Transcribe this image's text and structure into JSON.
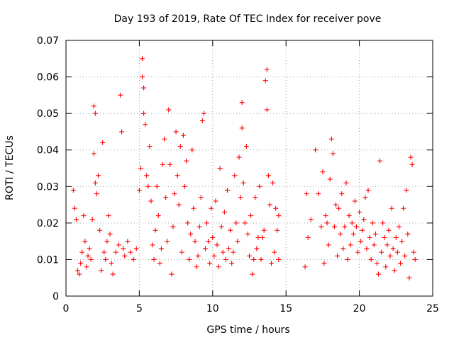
{
  "chart_data": {
    "type": "scatter",
    "title": "Day 193 of 2019, Rate Of TEC Index for receiver pove",
    "xlabel": "GPS time / hours",
    "ylabel": "ROTI / TECUs",
    "xlim": [
      0,
      25
    ],
    "ylim": [
      0,
      0.07
    ],
    "xticks": [
      0,
      5,
      10,
      15,
      20,
      25
    ],
    "xtick_labels": [
      "0",
      "5",
      "10",
      "15",
      "20",
      "25"
    ],
    "yticks": [
      0,
      0.01,
      0.02,
      0.03,
      0.04,
      0.05,
      0.06,
      0.07
    ],
    "ytick_labels": [
      "0",
      "0.01",
      "0.02",
      "0.03",
      "0.04",
      "0.05",
      "0.06",
      "0.07"
    ],
    "grid": true,
    "marker": "+",
    "color": "#ff0000",
    "series": [
      {
        "points": [
          [
            0.5,
            0.029
          ],
          [
            0.6,
            0.024
          ],
          [
            0.7,
            0.021
          ],
          [
            0.8,
            0.007
          ],
          [
            0.9,
            0.006
          ],
          [
            1.0,
            0.009
          ],
          [
            1.1,
            0.012
          ],
          [
            1.2,
            0.022
          ],
          [
            1.3,
            0.015
          ],
          [
            1.4,
            0.008
          ],
          [
            1.5,
            0.011
          ],
          [
            1.6,
            0.013
          ],
          [
            1.7,
            0.01
          ],
          [
            1.8,
            0.021
          ],
          [
            1.9,
            0.039
          ],
          [
            1.9,
            0.052
          ],
          [
            2.0,
            0.05
          ],
          [
            2.0,
            0.031
          ],
          [
            2.1,
            0.028
          ],
          [
            2.2,
            0.033
          ],
          [
            2.3,
            0.018
          ],
          [
            2.4,
            0.007
          ],
          [
            2.5,
            0.042
          ],
          [
            2.6,
            0.012
          ],
          [
            2.7,
            0.01
          ],
          [
            2.8,
            0.015
          ],
          [
            2.9,
            0.022
          ],
          [
            3.0,
            0.017
          ],
          [
            3.1,
            0.009
          ],
          [
            3.2,
            0.006
          ],
          [
            3.4,
            0.012
          ],
          [
            3.6,
            0.014
          ],
          [
            3.7,
            0.055
          ],
          [
            3.8,
            0.045
          ],
          [
            3.9,
            0.013
          ],
          [
            4.0,
            0.011
          ],
          [
            4.2,
            0.015
          ],
          [
            4.4,
            0.012
          ],
          [
            4.6,
            0.01
          ],
          [
            4.8,
            0.013
          ],
          [
            5.0,
            0.029
          ],
          [
            5.1,
            0.035
          ],
          [
            5.2,
            0.065
          ],
          [
            5.2,
            0.06
          ],
          [
            5.3,
            0.057
          ],
          [
            5.3,
            0.05
          ],
          [
            5.4,
            0.047
          ],
          [
            5.5,
            0.033
          ],
          [
            5.6,
            0.03
          ],
          [
            5.7,
            0.041
          ],
          [
            5.8,
            0.026
          ],
          [
            5.9,
            0.014
          ],
          [
            6.0,
            0.01
          ],
          [
            6.1,
            0.018
          ],
          [
            6.2,
            0.03
          ],
          [
            6.3,
            0.022
          ],
          [
            6.4,
            0.009
          ],
          [
            6.5,
            0.013
          ],
          [
            6.6,
            0.036
          ],
          [
            6.7,
            0.043
          ],
          [
            6.8,
            0.027
          ],
          [
            6.9,
            0.015
          ],
          [
            7.0,
            0.051
          ],
          [
            7.1,
            0.036
          ],
          [
            7.2,
            0.006
          ],
          [
            7.3,
            0.019
          ],
          [
            7.4,
            0.028
          ],
          [
            7.5,
            0.045
          ],
          [
            7.6,
            0.033
          ],
          [
            7.7,
            0.025
          ],
          [
            7.8,
            0.041
          ],
          [
            7.9,
            0.012
          ],
          [
            8.0,
            0.044
          ],
          [
            8.1,
            0.03
          ],
          [
            8.2,
            0.037
          ],
          [
            8.3,
            0.02
          ],
          [
            8.4,
            0.01
          ],
          [
            8.5,
            0.017
          ],
          [
            8.6,
            0.04
          ],
          [
            8.7,
            0.024
          ],
          [
            8.8,
            0.015
          ],
          [
            8.9,
            0.008
          ],
          [
            9.0,
            0.011
          ],
          [
            9.1,
            0.019
          ],
          [
            9.2,
            0.027
          ],
          [
            9.3,
            0.048
          ],
          [
            9.4,
            0.05
          ],
          [
            9.5,
            0.013
          ],
          [
            9.6,
            0.02
          ],
          [
            9.7,
            0.015
          ],
          [
            9.8,
            0.009
          ],
          [
            9.9,
            0.024
          ],
          [
            10.0,
            0.016
          ],
          [
            10.1,
            0.011
          ],
          [
            10.2,
            0.026
          ],
          [
            10.3,
            0.014
          ],
          [
            10.4,
            0.008
          ],
          [
            10.5,
            0.035
          ],
          [
            10.6,
            0.019
          ],
          [
            10.7,
            0.012
          ],
          [
            10.8,
            0.023
          ],
          [
            10.9,
            0.01
          ],
          [
            11.0,
            0.029
          ],
          [
            11.1,
            0.013
          ],
          [
            11.2,
            0.018
          ],
          [
            11.3,
            0.009
          ],
          [
            11.4,
            0.012
          ],
          [
            11.5,
            0.033
          ],
          [
            11.6,
            0.02
          ],
          [
            11.7,
            0.015
          ],
          [
            11.8,
            0.038
          ],
          [
            11.9,
            0.027
          ],
          [
            12.0,
            0.053
          ],
          [
            12.0,
            0.046
          ],
          [
            12.1,
            0.031
          ],
          [
            12.2,
            0.02
          ],
          [
            12.3,
            0.041
          ],
          [
            12.4,
            0.017
          ],
          [
            12.5,
            0.011
          ],
          [
            12.6,
            0.022
          ],
          [
            12.7,
            0.006
          ],
          [
            12.8,
            0.01
          ],
          [
            12.9,
            0.027
          ],
          [
            13.0,
            0.013
          ],
          [
            13.1,
            0.016
          ],
          [
            13.2,
            0.03
          ],
          [
            13.3,
            0.01
          ],
          [
            13.4,
            0.016
          ],
          [
            13.5,
            0.018
          ],
          [
            13.6,
            0.059
          ],
          [
            13.7,
            0.062
          ],
          [
            13.7,
            0.051
          ],
          [
            13.8,
            0.033
          ],
          [
            13.9,
            0.025
          ],
          [
            14.0,
            0.009
          ],
          [
            14.1,
            0.031
          ],
          [
            14.2,
            0.012
          ],
          [
            14.3,
            0.024
          ],
          [
            14.4,
            0.018
          ],
          [
            14.5,
            0.01
          ],
          [
            14.5,
            0.022
          ],
          [
            16.3,
            0.008
          ],
          [
            16.4,
            0.028
          ],
          [
            16.5,
            0.016
          ],
          [
            16.7,
            0.021
          ],
          [
            17.0,
            0.04
          ],
          [
            17.2,
            0.028
          ],
          [
            17.4,
            0.019
          ],
          [
            17.5,
            0.034
          ],
          [
            17.6,
            0.009
          ],
          [
            17.7,
            0.022
          ],
          [
            17.8,
            0.02
          ],
          [
            17.9,
            0.014
          ],
          [
            18.0,
            0.032
          ],
          [
            18.1,
            0.043
          ],
          [
            18.2,
            0.039
          ],
          [
            18.3,
            0.019
          ],
          [
            18.4,
            0.025
          ],
          [
            18.5,
            0.011
          ],
          [
            18.6,
            0.024
          ],
          [
            18.7,
            0.017
          ],
          [
            18.8,
            0.028
          ],
          [
            18.9,
            0.013
          ],
          [
            19.0,
            0.019
          ],
          [
            19.1,
            0.031
          ],
          [
            19.2,
            0.01
          ],
          [
            19.3,
            0.022
          ],
          [
            19.4,
            0.014
          ],
          [
            19.5,
            0.02
          ],
          [
            19.6,
            0.017
          ],
          [
            19.7,
            0.026
          ],
          [
            19.8,
            0.019
          ],
          [
            19.9,
            0.012
          ],
          [
            20.0,
            0.023
          ],
          [
            20.1,
            0.015
          ],
          [
            20.2,
            0.018
          ],
          [
            20.3,
            0.021
          ],
          [
            20.4,
            0.027
          ],
          [
            20.5,
            0.013
          ],
          [
            20.6,
            0.029
          ],
          [
            20.7,
            0.016
          ],
          [
            20.8,
            0.01
          ],
          [
            20.9,
            0.02
          ],
          [
            21.0,
            0.014
          ],
          [
            21.1,
            0.017
          ],
          [
            21.2,
            0.009
          ],
          [
            21.3,
            0.006
          ],
          [
            21.4,
            0.037
          ],
          [
            21.5,
            0.012
          ],
          [
            21.6,
            0.02
          ],
          [
            21.7,
            0.016
          ],
          [
            21.8,
            0.008
          ],
          [
            21.9,
            0.014
          ],
          [
            22.0,
            0.018
          ],
          [
            22.1,
            0.011
          ],
          [
            22.2,
            0.024
          ],
          [
            22.3,
            0.013
          ],
          [
            22.4,
            0.007
          ],
          [
            22.5,
            0.016
          ],
          [
            22.6,
            0.012
          ],
          [
            22.7,
            0.019
          ],
          [
            22.8,
            0.009
          ],
          [
            22.9,
            0.015
          ],
          [
            23.0,
            0.024
          ],
          [
            23.1,
            0.011
          ],
          [
            23.2,
            0.029
          ],
          [
            23.3,
            0.017
          ],
          [
            23.4,
            0.005
          ],
          [
            23.5,
            0.038
          ],
          [
            23.6,
            0.036
          ],
          [
            23.7,
            0.012
          ],
          [
            23.8,
            0.01
          ]
        ]
      }
    ]
  }
}
